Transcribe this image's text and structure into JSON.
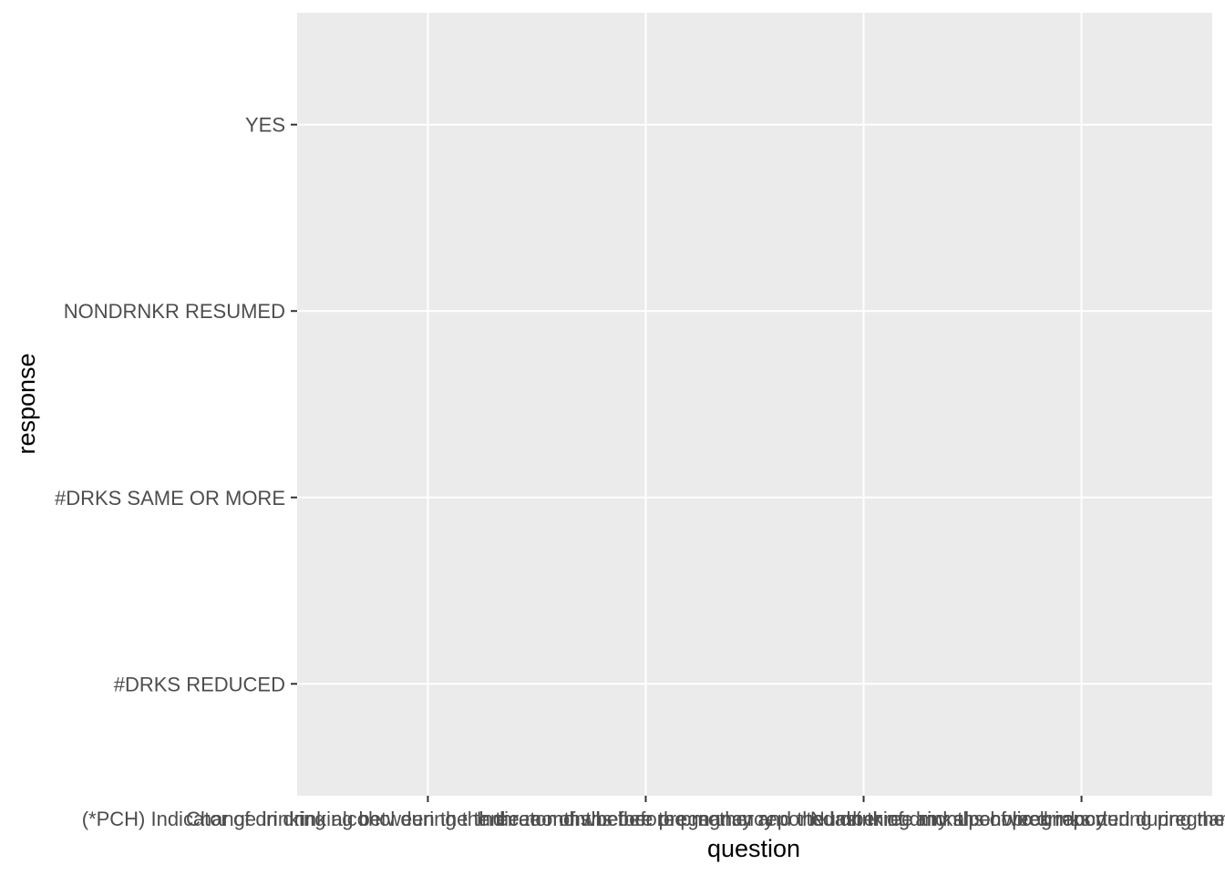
{
  "chart_data": {
    "type": "scatter",
    "xlabel": "question",
    "ylabel": "response",
    "categories": [
      "(*PCH) Indicator of drinking alcohol during the three months before pregnancy",
      "Change in drinking between the three months before pregnancy and the last three months of pregnancy",
      "Indicator of whether the mother reported drinking any alcoholic drinks during pregnancy",
      "Number of drinks per week reported during the last two years"
    ],
    "y_categories": [
      "#DRKS REDUCED",
      "#DRKS SAME OR MORE",
      "NONDRNKR RESUMED",
      "YES"
    ],
    "points": [],
    "grid": true,
    "legend": "none",
    "colors": {
      "panel": "#ebebeb",
      "grid": "#ffffff",
      "tick": "#333333",
      "tick_text": "#4d4d4d",
      "title_text": "#000000"
    }
  }
}
